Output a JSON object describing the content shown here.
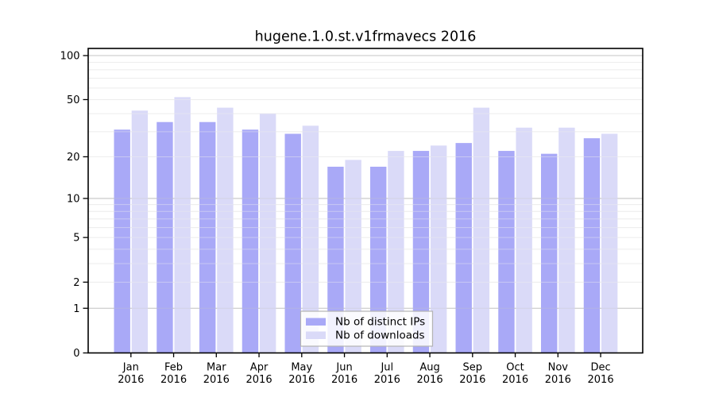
{
  "chart_data": {
    "type": "bar",
    "title": "hugene.1.0.st.v1frmavecs 2016",
    "categories": [
      "Jan",
      "Feb",
      "Mar",
      "Apr",
      "May",
      "Jun",
      "Jul",
      "Aug",
      "Sep",
      "Oct",
      "Nov",
      "Dec"
    ],
    "category_year": "2016",
    "series": [
      {
        "name": "Nb of distinct IPs",
        "color": "#a9a9f7",
        "values": [
          31,
          35,
          35,
          31,
          29,
          17,
          17,
          22,
          25,
          22,
          21,
          27
        ]
      },
      {
        "name": "Nb of downloads",
        "color": "#dadaf8",
        "values": [
          42,
          52,
          44,
          40,
          33,
          19,
          22,
          24,
          44,
          32,
          32,
          29
        ]
      }
    ],
    "xlabel": "",
    "ylabel": "",
    "y_axis": {
      "scale": "log1p",
      "tick_values": [
        0,
        1,
        2,
        5,
        10,
        20,
        50,
        100
      ],
      "tick_labels": [
        "0",
        "1",
        "2",
        "5",
        "10",
        "20",
        "50",
        "100"
      ],
      "range": [
        0,
        110
      ]
    },
    "grid": {
      "on": true,
      "major_lines": [
        1,
        10,
        100
      ],
      "minor_lines": [
        2,
        3,
        4,
        5,
        6,
        7,
        8,
        9,
        20,
        30,
        40,
        50,
        60,
        70,
        80,
        90
      ],
      "major_color": "#c6c6c6",
      "minor_color": "#ededed"
    },
    "legend": {
      "position": "bottom-center",
      "background": "#ffffff",
      "border_color": "#b3b3b3"
    },
    "axis_color": "#000000"
  }
}
